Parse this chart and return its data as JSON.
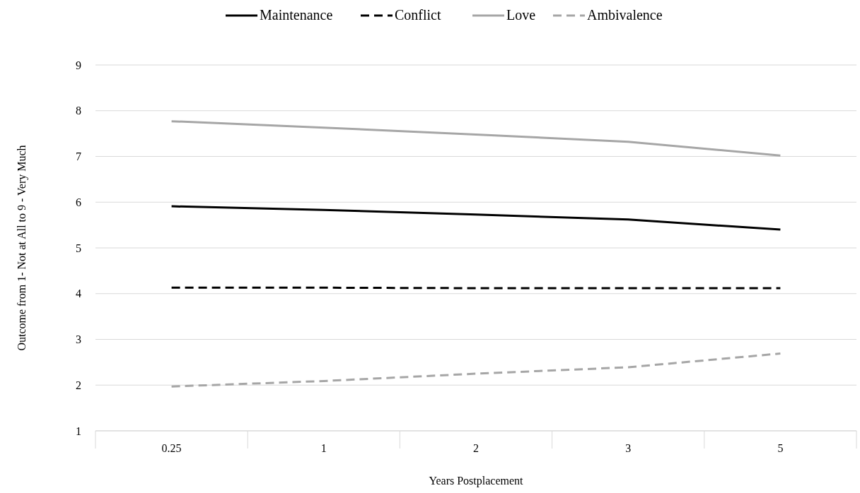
{
  "chart_data": {
    "type": "line",
    "xlabel": "Years Postplacement",
    "ylabel": "Outcome from 1- Not at All to 9 - Very Much",
    "categories": [
      "0.25",
      "1",
      "2",
      "3",
      "5"
    ],
    "series": [
      {
        "name": "Maintenance",
        "color": "#000000",
        "line_style": "solid",
        "values": [
          5.91,
          5.83,
          5.73,
          5.62,
          5.4
        ]
      },
      {
        "name": "Conflict",
        "color": "#000000",
        "line_style": "dashed",
        "values": [
          4.13,
          4.13,
          4.12,
          4.12,
          4.12
        ]
      },
      {
        "name": "Love",
        "color": "#a6a6a6",
        "line_style": "solid",
        "values": [
          7.77,
          7.63,
          7.48,
          7.32,
          7.02
        ]
      },
      {
        "name": "Ambivalence",
        "color": "#a6a6a6",
        "line_style": "dashed",
        "values": [
          1.97,
          2.09,
          2.25,
          2.39,
          2.69
        ]
      }
    ],
    "ylim": [
      1,
      9
    ],
    "yticks": [
      1,
      2,
      3,
      4,
      5,
      6,
      7,
      8,
      9
    ],
    "grid": "y",
    "legend": "top",
    "marker": "none"
  }
}
